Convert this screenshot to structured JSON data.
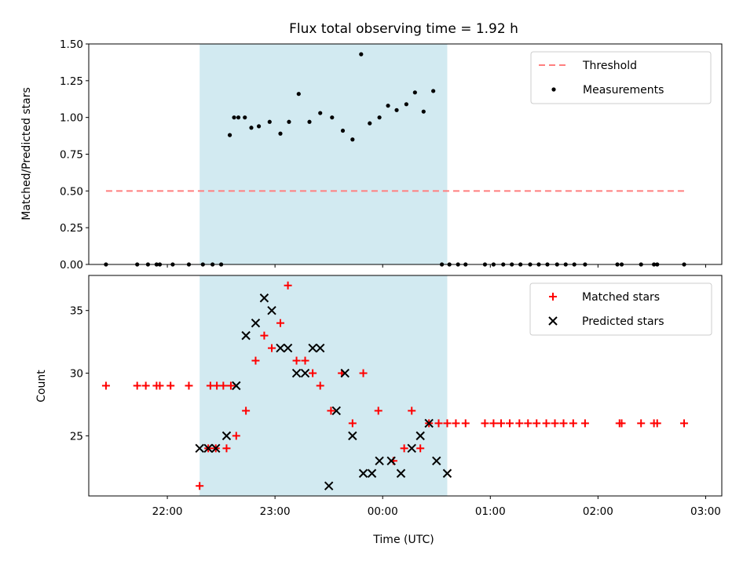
{
  "chart_data": [
    {
      "type": "scatter",
      "title": "Flux total observing time = 1.92 h",
      "xlabel": "",
      "ylabel": "Matched/Predicted stars",
      "ylim": [
        0,
        1.5
      ],
      "yticks": [
        0.0,
        0.25,
        0.5,
        0.75,
        1.0,
        1.25,
        1.5
      ],
      "ytick_labels": [
        "0.00",
        "0.25",
        "0.50",
        "0.75",
        "1.00",
        "1.25",
        "1.50"
      ],
      "xlim_hours": [
        21.27,
        27.15
      ],
      "observing_window_hours": [
        22.3,
        24.6
      ],
      "window_color": "#add8e6",
      "legend": {
        "position": "upper right",
        "entries": [
          "Threshold",
          "Measurements"
        ]
      },
      "threshold": {
        "name": "Threshold",
        "value": 0.5,
        "x_range_hours": [
          21.43,
          26.8
        ],
        "color": "#ff7f7f"
      },
      "series": [
        {
          "name": "Measurements",
          "color": "#000000",
          "x_hours": [
            21.43,
            21.72,
            21.82,
            21.9,
            21.93,
            22.05,
            22.2,
            22.33,
            22.42,
            22.5,
            22.58,
            22.62,
            22.66,
            22.72,
            22.78,
            22.85,
            22.95,
            23.05,
            23.13,
            23.22,
            23.32,
            23.42,
            23.53,
            23.63,
            23.72,
            23.8,
            23.88,
            23.97,
            24.05,
            24.13,
            24.22,
            24.3,
            24.38,
            24.47,
            24.55,
            24.62,
            24.7,
            24.77,
            24.95,
            25.03,
            25.12,
            25.2,
            25.28,
            25.37,
            25.45,
            25.53,
            25.62,
            25.7,
            25.78,
            25.88,
            26.18,
            26.22,
            26.4,
            26.52,
            26.55,
            26.8
          ],
          "values": [
            0,
            0,
            0,
            0,
            0,
            0,
            0,
            0,
            0,
            0,
            0.88,
            1.0,
            1.0,
            1.0,
            0.93,
            0.94,
            0.97,
            0.89,
            0.97,
            1.16,
            0.97,
            1.03,
            1.0,
            0.91,
            0.85,
            1.43,
            0.96,
            1.0,
            1.08,
            1.05,
            1.09,
            1.17,
            1.04,
            1.18,
            0,
            0,
            0,
            0,
            0,
            0,
            0,
            0,
            0,
            0,
            0,
            0,
            0,
            0,
            0,
            0,
            0,
            0,
            0,
            0,
            0,
            0
          ]
        }
      ]
    },
    {
      "type": "scatter",
      "title": "",
      "xlabel": "Time (UTC)",
      "ylabel": "Count",
      "ylim": [
        20.2,
        37.8
      ],
      "yticks": [
        25,
        30,
        35
      ],
      "ytick_labels": [
        "25",
        "30",
        "35"
      ],
      "xlim_hours": [
        21.27,
        27.15
      ],
      "xticks_hours": [
        22,
        23,
        24,
        25,
        26,
        27
      ],
      "xtick_labels": [
        "22:00",
        "23:00",
        "00:00",
        "01:00",
        "02:00",
        "03:00"
      ],
      "observing_window_hours": [
        22.3,
        24.6
      ],
      "window_color": "#add8e6",
      "legend": {
        "position": "upper right",
        "entries": [
          "Matched stars",
          "Predicted stars"
        ]
      },
      "series": [
        {
          "name": "Matched stars",
          "marker": "+",
          "color": "#ff0000",
          "x_hours": [
            21.43,
            21.72,
            21.8,
            21.9,
            21.93,
            22.03,
            22.2,
            22.4,
            22.46,
            22.52,
            22.59,
            22.3,
            22.38,
            22.45,
            22.55,
            22.64,
            22.73,
            22.82,
            22.9,
            22.97,
            23.05,
            23.12,
            23.2,
            23.28,
            23.35,
            23.42,
            23.52,
            23.62,
            23.72,
            23.82,
            23.96,
            24.1,
            24.2,
            24.27,
            24.35,
            24.43,
            24.52,
            24.6,
            24.68,
            24.77,
            24.95,
            25.03,
            25.1,
            25.18,
            25.27,
            25.35,
            25.43,
            25.52,
            25.6,
            25.68,
            25.77,
            25.88,
            26.2,
            26.22,
            26.4,
            26.52,
            26.55,
            26.8
          ],
          "values": [
            29,
            29,
            29,
            29,
            29,
            29,
            29,
            29,
            29,
            29,
            29,
            21,
            24,
            24,
            24,
            25,
            27,
            31,
            33,
            32,
            34,
            37,
            31,
            31,
            30,
            29,
            27,
            30,
            26,
            30,
            27,
            23,
            24,
            27,
            24,
            26,
            26,
            26,
            26,
            26,
            26,
            26,
            26,
            26,
            26,
            26,
            26,
            26,
            26,
            26,
            26,
            26,
            26,
            26,
            26,
            26,
            26,
            26
          ]
        },
        {
          "name": "Predicted stars",
          "marker": "x",
          "color": "#000000",
          "x_hours": [
            22.3,
            22.38,
            22.45,
            22.55,
            22.64,
            22.73,
            22.82,
            22.9,
            22.97,
            23.05,
            23.12,
            23.2,
            23.28,
            23.35,
            23.42,
            23.5,
            23.57,
            23.65,
            23.72,
            23.82,
            23.9,
            23.97,
            24.08,
            24.17,
            24.27,
            24.35,
            24.43,
            24.5,
            24.6
          ],
          "values": [
            24,
            24,
            24,
            25,
            29,
            33,
            34,
            36,
            35,
            32,
            32,
            30,
            30,
            32,
            32,
            21,
            27,
            30,
            25,
            22,
            22,
            23,
            23,
            22,
            24,
            25,
            26,
            23,
            22
          ]
        }
      ]
    }
  ]
}
